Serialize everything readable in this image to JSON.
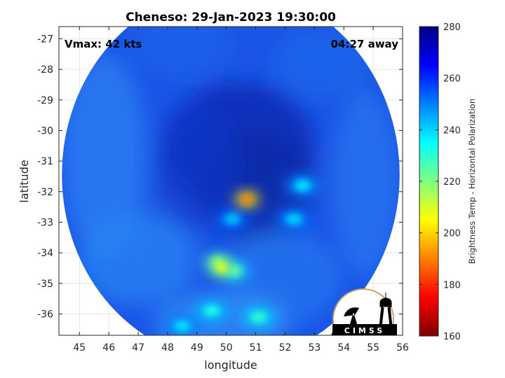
{
  "chart_data": {
    "type": "heatmap",
    "title": "Cheneso: 29-Jan-2023 19:30:00",
    "xlabel": "longitude",
    "ylabel": "latitude",
    "xlim": [
      44.3,
      56
    ],
    "ylim": [
      -36.7,
      -26.6
    ],
    "xticks": [
      45,
      46,
      47,
      48,
      49,
      50,
      51,
      52,
      53,
      54,
      55,
      56
    ],
    "yticks": [
      -27,
      -28,
      -29,
      -30,
      -31,
      -32,
      -33,
      -34,
      -35,
      -36
    ],
    "grid": true,
    "annotations": {
      "left": "Vmax: 42 kts",
      "right": "04:27 away"
    },
    "colorbar": {
      "label": "Brightness Temp - Horizontal Polarization",
      "min": 160,
      "max": 280,
      "ticks": [
        280,
        260,
        240,
        220,
        200,
        180,
        160
      ],
      "colormap": "jet"
    },
    "swath": {
      "center_lon": 50.15,
      "center_lat": -31.45,
      "radius_lon": 5.75,
      "radius_lat": 6.1
    },
    "features": [
      {
        "lon": 50.7,
        "lat": -32.25,
        "value": 190
      },
      {
        "lon": 49.85,
        "lat": -34.5,
        "value": 205
      },
      {
        "lon": 49.7,
        "lat": -34.3,
        "value": 215
      },
      {
        "lon": 50.3,
        "lat": -34.6,
        "value": 222
      },
      {
        "lon": 49.5,
        "lat": -35.9,
        "value": 232
      },
      {
        "lon": 51.1,
        "lat": -36.1,
        "value": 230
      },
      {
        "lon": 52.6,
        "lat": -31.8,
        "value": 238
      },
      {
        "lon": 52.3,
        "lat": -32.9,
        "value": 240
      },
      {
        "lon": 50.2,
        "lat": -32.9,
        "value": 242
      },
      {
        "lon": 48.5,
        "lat": -36.4,
        "value": 238
      }
    ]
  },
  "logo": {
    "text": "CIMSS"
  }
}
